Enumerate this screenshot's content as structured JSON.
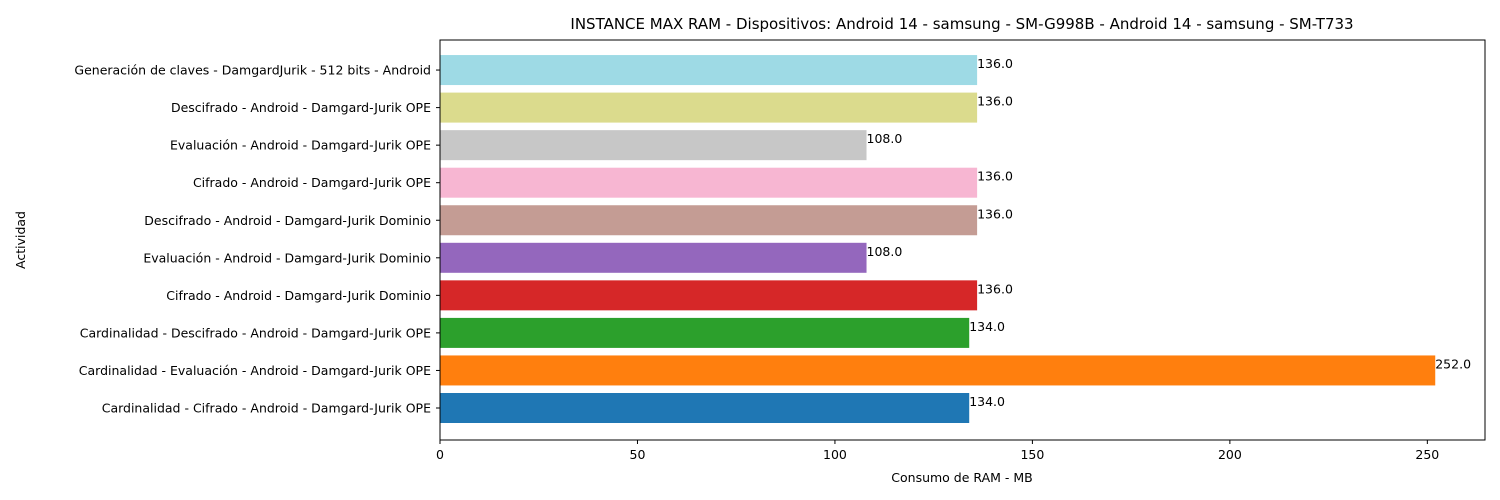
{
  "chart_data": {
    "type": "bar",
    "orientation": "horizontal",
    "title": "INSTANCE MAX RAM - Dispositivos: Android 14 - samsung - SM-G998B - Android 14 - samsung - SM-T733",
    "xlabel": "Consumo de RAM - MB",
    "ylabel": "Actividad",
    "xlim": [
      0,
      264.6
    ],
    "xticks": [
      "0",
      "50",
      "100",
      "150",
      "200",
      "250"
    ],
    "xtick_values": [
      0,
      50,
      100,
      150,
      200,
      250
    ],
    "grid": false,
    "categories": [
      "Cardinalidad - Cifrado - Android - Damgard-Jurik OPE",
      "Cardinalidad - Evaluación - Android - Damgard-Jurik OPE",
      "Cardinalidad - Descifrado - Android - Damgard-Jurik OPE",
      "Cifrado - Android - Damgard-Jurik Dominio",
      "Evaluación - Android - Damgard-Jurik Dominio",
      "Descifrado - Android - Damgard-Jurik Dominio",
      "Cifrado - Android - Damgard-Jurik OPE",
      "Evaluación - Android - Damgard-Jurik OPE",
      "Descifrado - Android - Damgard-Jurik OPE",
      "Generación de claves - DamgardJurik - 512 bits - Android"
    ],
    "values": [
      134.0,
      252.0,
      134.0,
      136.0,
      108.0,
      136.0,
      136.0,
      108.0,
      136.0,
      136.0
    ],
    "value_labels": [
      "134.0",
      "252.0",
      "134.0",
      "136.0",
      "108.0",
      "136.0",
      "136.0",
      "108.0",
      "136.0",
      "136.0"
    ],
    "colors": [
      "#1f77b4",
      "#ff7f0e",
      "#2ca02c",
      "#d62728",
      "#9467bd",
      "#c49c94",
      "#f7b6d2",
      "#c7c7c7",
      "#dbdb8d",
      "#9edae5"
    ]
  }
}
